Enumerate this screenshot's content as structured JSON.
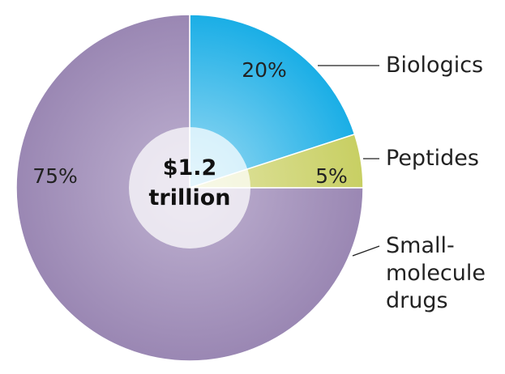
{
  "chart_data": {
    "type": "pie",
    "center_label": [
      "$1.2",
      "trillion"
    ],
    "slices": [
      {
        "label": "Biologics",
        "value": 20,
        "value_label": "20%",
        "color": "#1aaee6",
        "color_light": "#9fdcf4"
      },
      {
        "label": "Peptides",
        "value": 5,
        "value_label": "5%",
        "color": "#c8cf63",
        "color_light": "#e2e5a6"
      },
      {
        "label": "Small-molecule drugs",
        "label_lines": [
          "Small-",
          "molecule",
          "drugs"
        ],
        "value": 75,
        "value_label": "75%",
        "color": "#9a87b3",
        "color_light": "#c0b3d2"
      }
    ]
  }
}
